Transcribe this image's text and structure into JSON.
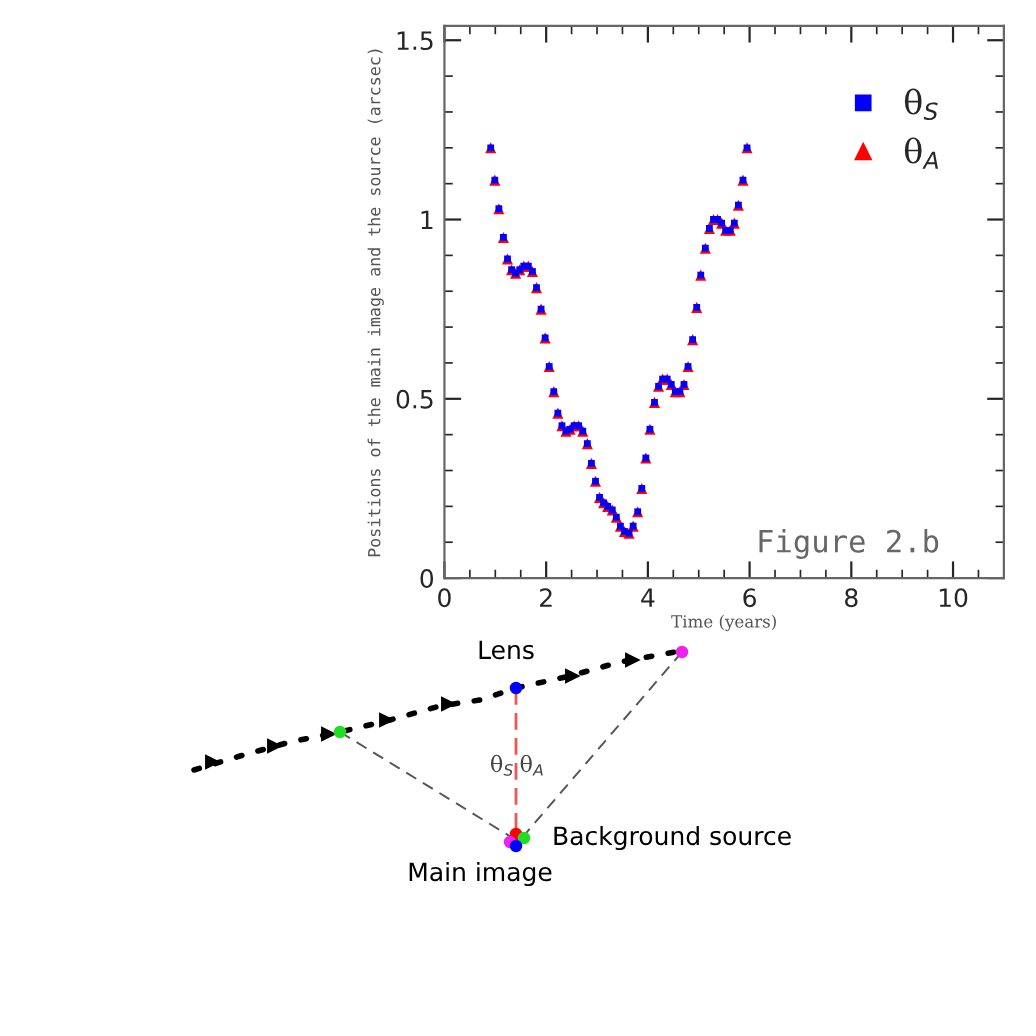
{
  "chart_data": {
    "type": "scatter",
    "xlabel": "Time (years)",
    "ylabel": "Positions of the main image and the source (arcsec)",
    "x": [
      0.91,
      0.99,
      1.07,
      1.16,
      1.24,
      1.32,
      1.4,
      1.48,
      1.56,
      1.65,
      1.73,
      1.81,
      1.9,
      1.98,
      2.06,
      2.15,
      2.23,
      2.31,
      2.39,
      2.47,
      2.55,
      2.64,
      2.72,
      2.81,
      2.89,
      2.97,
      3.05,
      3.13,
      3.21,
      3.3,
      3.38,
      3.46,
      3.54,
      3.63,
      3.71,
      3.8,
      3.88,
      3.96,
      4.04,
      4.13,
      4.21,
      4.29,
      4.38,
      4.46,
      4.54,
      4.63,
      4.71,
      4.79,
      4.88,
      4.96,
      5.04,
      5.13,
      5.21,
      5.29,
      5.37,
      5.45,
      5.53,
      5.62,
      5.7,
      5.78,
      5.87,
      5.95
    ],
    "series": [
      {
        "name": "θ$_{A}$",
        "color": "#ff0000",
        "marker": "triangle",
        "values": [
          1.2,
          1.11,
          1.03,
          0.95,
          0.89,
          0.86,
          0.85,
          0.86,
          0.87,
          0.87,
          0.855,
          0.81,
          0.75,
          0.67,
          0.59,
          0.52,
          0.46,
          0.425,
          0.41,
          0.415,
          0.425,
          0.425,
          0.41,
          0.375,
          0.32,
          0.27,
          0.225,
          0.21,
          0.2,
          0.19,
          0.17,
          0.145,
          0.13,
          0.125,
          0.145,
          0.185,
          0.25,
          0.335,
          0.415,
          0.49,
          0.535,
          0.555,
          0.555,
          0.54,
          0.52,
          0.52,
          0.54,
          0.59,
          0.665,
          0.755,
          0.845,
          0.92,
          0.975,
          1.0,
          1.0,
          0.99,
          0.97,
          0.97,
          0.99,
          1.04,
          1.11,
          1.2
        ]
      },
      {
        "name": "θ$_{S}$",
        "color": "#0000ff",
        "marker": "square",
        "values": [
          1.2,
          1.11,
          1.03,
          0.95,
          0.89,
          0.86,
          0.85,
          0.86,
          0.87,
          0.87,
          0.855,
          0.81,
          0.75,
          0.67,
          0.59,
          0.52,
          0.46,
          0.425,
          0.41,
          0.415,
          0.425,
          0.425,
          0.41,
          0.375,
          0.32,
          0.27,
          0.225,
          0.21,
          0.2,
          0.19,
          0.17,
          0.145,
          0.13,
          0.125,
          0.145,
          0.185,
          0.25,
          0.335,
          0.415,
          0.49,
          0.535,
          0.555,
          0.555,
          0.54,
          0.52,
          0.52,
          0.54,
          0.59,
          0.665,
          0.755,
          0.845,
          0.92,
          0.975,
          1.0,
          1.0,
          0.99,
          0.97,
          0.97,
          0.99,
          1.04,
          1.11,
          1.2
        ]
      }
    ],
    "xlim": [
      0,
      11
    ],
    "xticks": [
      0,
      2,
      4,
      6,
      8,
      10
    ],
    "ylim": [
      0,
      1.54
    ],
    "yticks": [
      0,
      0.5,
      1,
      1.5
    ],
    "grid": false,
    "legend": "top right",
    "annotations": [
      "Figure 2.b",
      "Lens",
      "θ$_{S}$",
      "θ$_{A}$",
      "Background source",
      "Main image"
    ]
  }
}
